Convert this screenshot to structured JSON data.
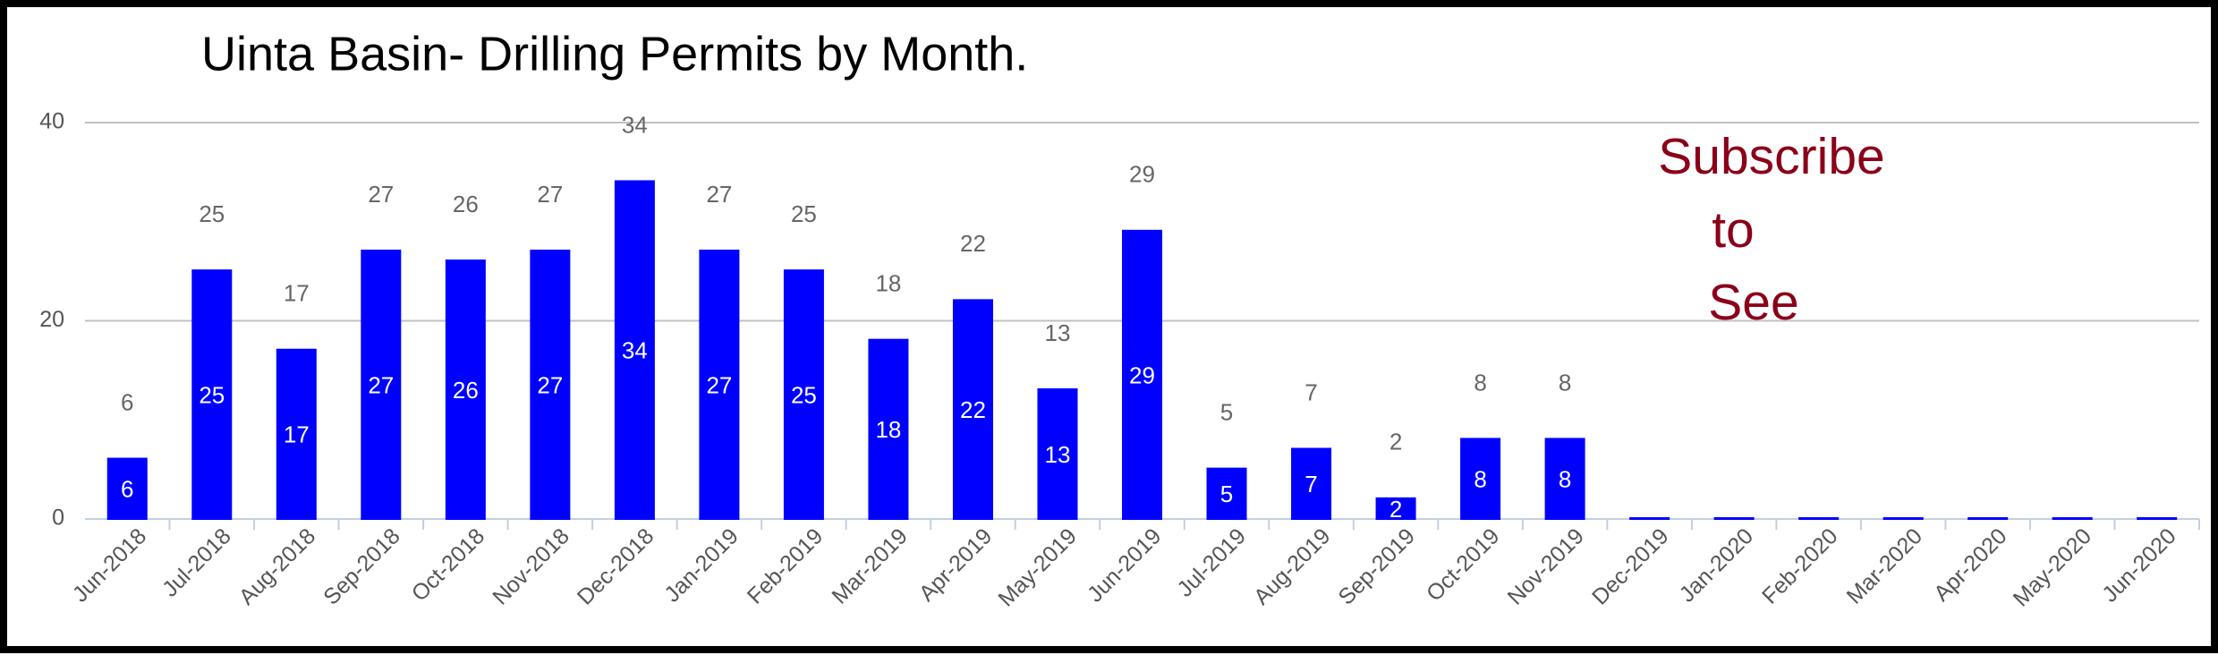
{
  "chart_data": {
    "type": "bar",
    "title": "Uinta Basin- Drilling Permits by Month.",
    "categories": [
      "Jun-2018",
      "Jul-2018",
      "Aug-2018",
      "Sep-2018",
      "Oct-2018",
      "Nov-2018",
      "Dec-2018",
      "Jan-2019",
      "Feb-2019",
      "Mar-2019",
      "Apr-2019",
      "May-2019",
      "Jun-2019",
      "Jul-2019",
      "Aug-2019",
      "Sep-2019",
      "Oct-2019",
      "Nov-2019",
      "Dec-2019",
      "Jan-2020",
      "Feb-2020",
      "Mar-2020",
      "Apr-2020",
      "May-2020",
      "Jun-2020"
    ],
    "values": [
      6,
      25,
      17,
      27,
      26,
      27,
      34,
      27,
      25,
      18,
      22,
      13,
      29,
      5,
      7,
      2,
      8,
      8,
      0,
      0,
      0,
      0,
      0,
      0,
      0
    ],
    "color": "#0000ff",
    "ylim": [
      0,
      40
    ],
    "yticks": [
      0,
      20,
      40
    ],
    "grid": true,
    "annotation": [
      "Subscribe",
      "to",
      "See"
    ]
  }
}
